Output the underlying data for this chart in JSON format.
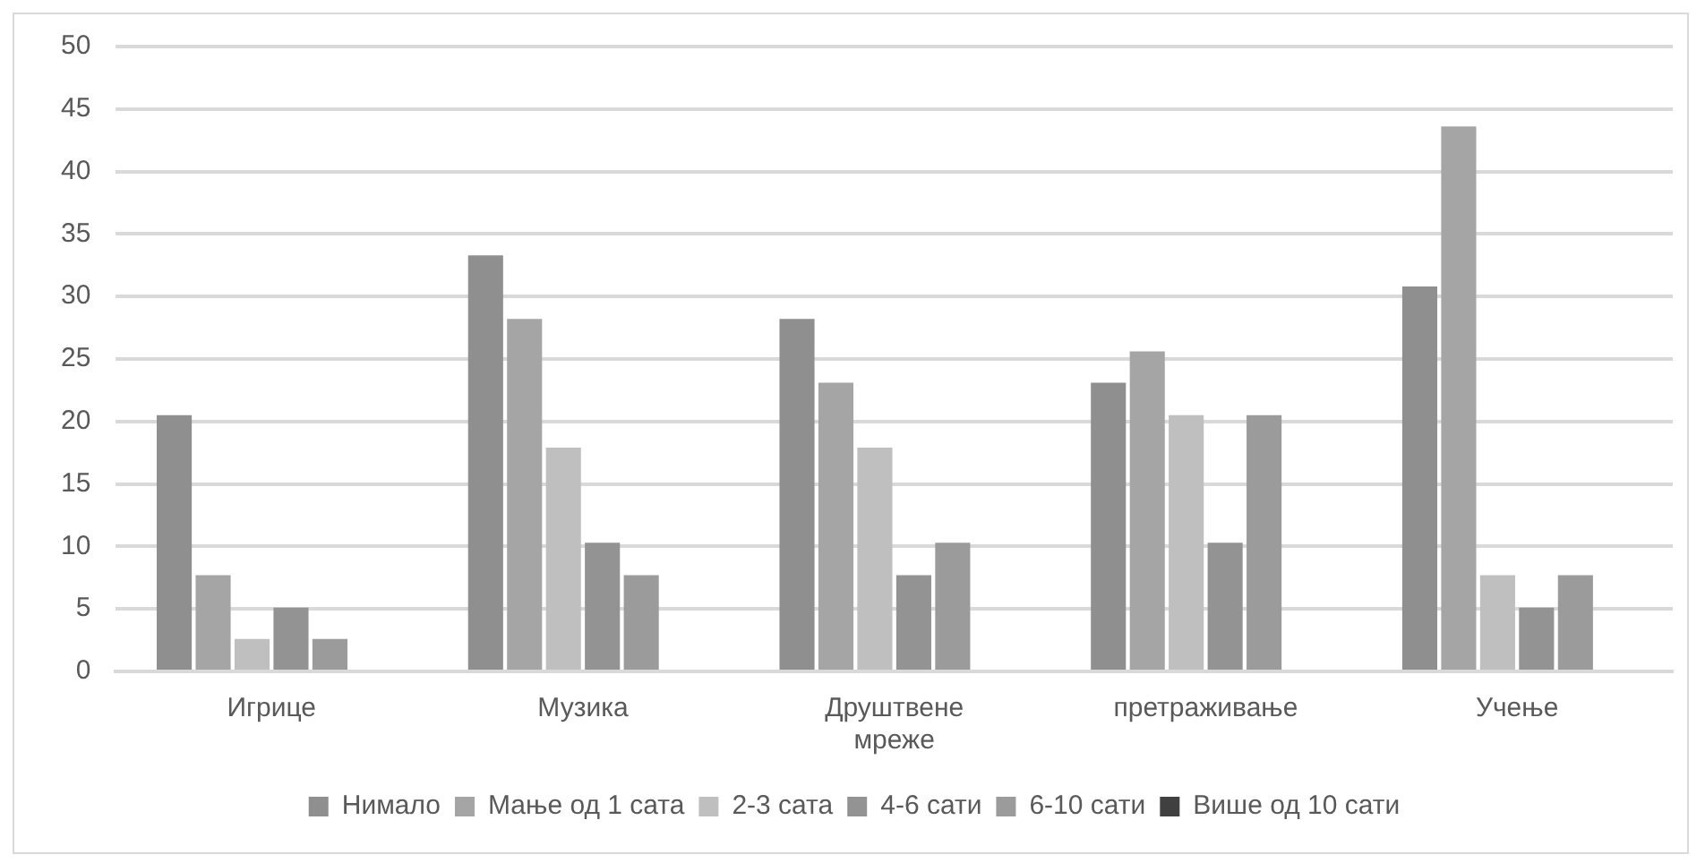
{
  "chart_data": {
    "type": "bar",
    "categories": [
      "Игрице",
      "Музика",
      "Друштвене мреже",
      "претраживање",
      "Учење"
    ],
    "series": [
      {
        "name": "Нимало",
        "color": "#8f8f8f",
        "values": [
          20.5,
          33.3,
          28.2,
          23.1,
          30.8
        ]
      },
      {
        "name": "Мање од 1 сата",
        "color": "#a5a5a5",
        "values": [
          7.7,
          28.2,
          23.1,
          25.6,
          43.6
        ]
      },
      {
        "name": "2-3 сата",
        "color": "#bfbfbf",
        "values": [
          2.6,
          17.9,
          17.9,
          20.5,
          7.7
        ]
      },
      {
        "name": "4-6 сати",
        "color": "#939393",
        "values": [
          5.1,
          10.3,
          7.7,
          10.3,
          5.1
        ]
      },
      {
        "name": "6-10 сати",
        "color": "#9b9b9b",
        "values": [
          2.6,
          7.7,
          10.3,
          20.5,
          7.7
        ]
      },
      {
        "name": "Више од 10 сати",
        "color": "#404040",
        "values": [
          0,
          0,
          0,
          0,
          0
        ]
      }
    ],
    "ylim": [
      0,
      50
    ],
    "yticks": [
      0,
      5,
      10,
      15,
      20,
      25,
      30,
      35,
      40,
      45,
      50
    ],
    "grid": "y",
    "legend": "bottom"
  }
}
